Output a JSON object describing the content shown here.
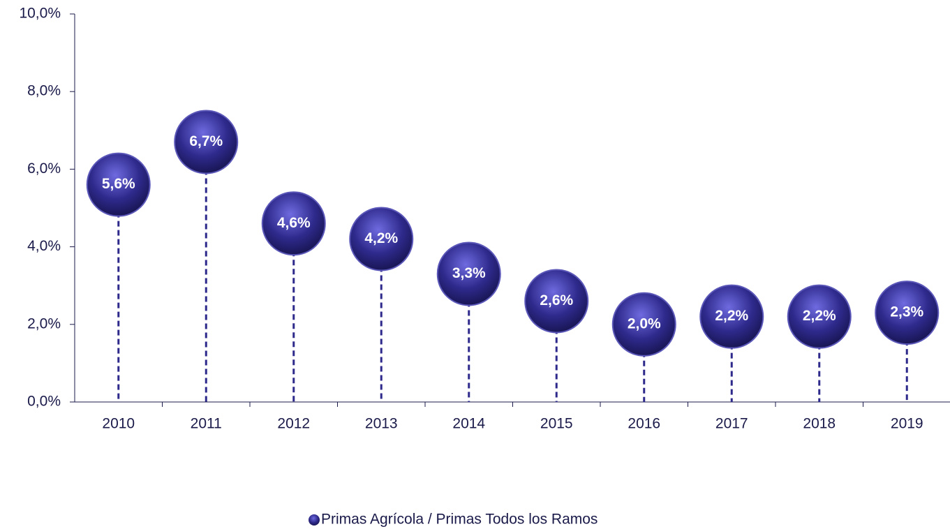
{
  "chart_data": {
    "type": "lollipop",
    "categories": [
      "2010",
      "2011",
      "2012",
      "2013",
      "2014",
      "2015",
      "2016",
      "2017",
      "2018",
      "2019"
    ],
    "series": [
      {
        "name": "Primas Agrícola / Primas Todos los Ramos",
        "color": "#2e2a8c",
        "values": [
          5.6,
          6.7,
          4.6,
          4.2,
          3.3,
          2.6,
          2.0,
          2.2,
          2.2,
          2.3
        ],
        "value_labels": [
          "5,6%",
          "6,7%",
          "4,6%",
          "4,2%",
          "3,3%",
          "2,6%",
          "2,0%",
          "2,2%",
          "2,2%",
          "2,3%"
        ]
      }
    ],
    "ylim": [
      0,
      10
    ],
    "yticks": [
      {
        "value": 0,
        "label": "0,0%"
      },
      {
        "value": 2,
        "label": "2,0%"
      },
      {
        "value": 4,
        "label": "4,0%"
      },
      {
        "value": 6,
        "label": "6,0%"
      },
      {
        "value": 8,
        "label": "8,0%"
      },
      {
        "value": 10,
        "label": "10,0%"
      }
    ],
    "legend": "bottom"
  }
}
